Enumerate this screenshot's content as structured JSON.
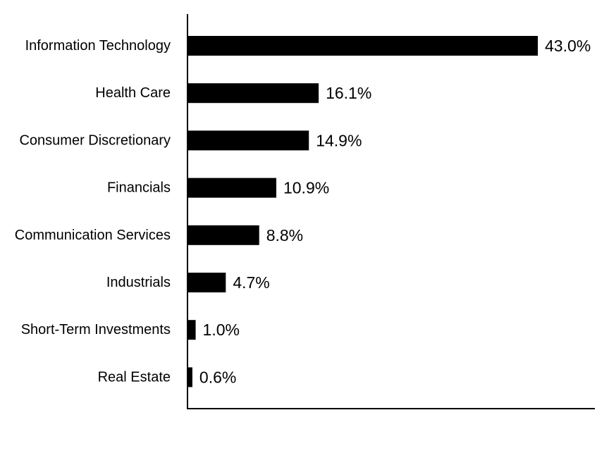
{
  "chart_data": {
    "type": "bar",
    "orientation": "horizontal",
    "categories": [
      "Information Technology",
      "Health Care",
      "Consumer Discretionary",
      "Financials",
      "Communication Services",
      "Industrials",
      "Short-Term Investments",
      "Real Estate"
    ],
    "values": [
      43.0,
      16.1,
      14.9,
      10.9,
      8.8,
      4.7,
      1.0,
      0.6
    ],
    "value_labels": [
      "43.0%",
      "16.1%",
      "14.9%",
      "10.9%",
      "8.8%",
      "4.7%",
      "1.0%",
      "0.6%"
    ],
    "title": "",
    "xlabel": "",
    "ylabel": "",
    "xlim": [
      0,
      50
    ],
    "grid": false,
    "legend": "none",
    "bar_color": "#000000",
    "axis_color": "#000000"
  }
}
